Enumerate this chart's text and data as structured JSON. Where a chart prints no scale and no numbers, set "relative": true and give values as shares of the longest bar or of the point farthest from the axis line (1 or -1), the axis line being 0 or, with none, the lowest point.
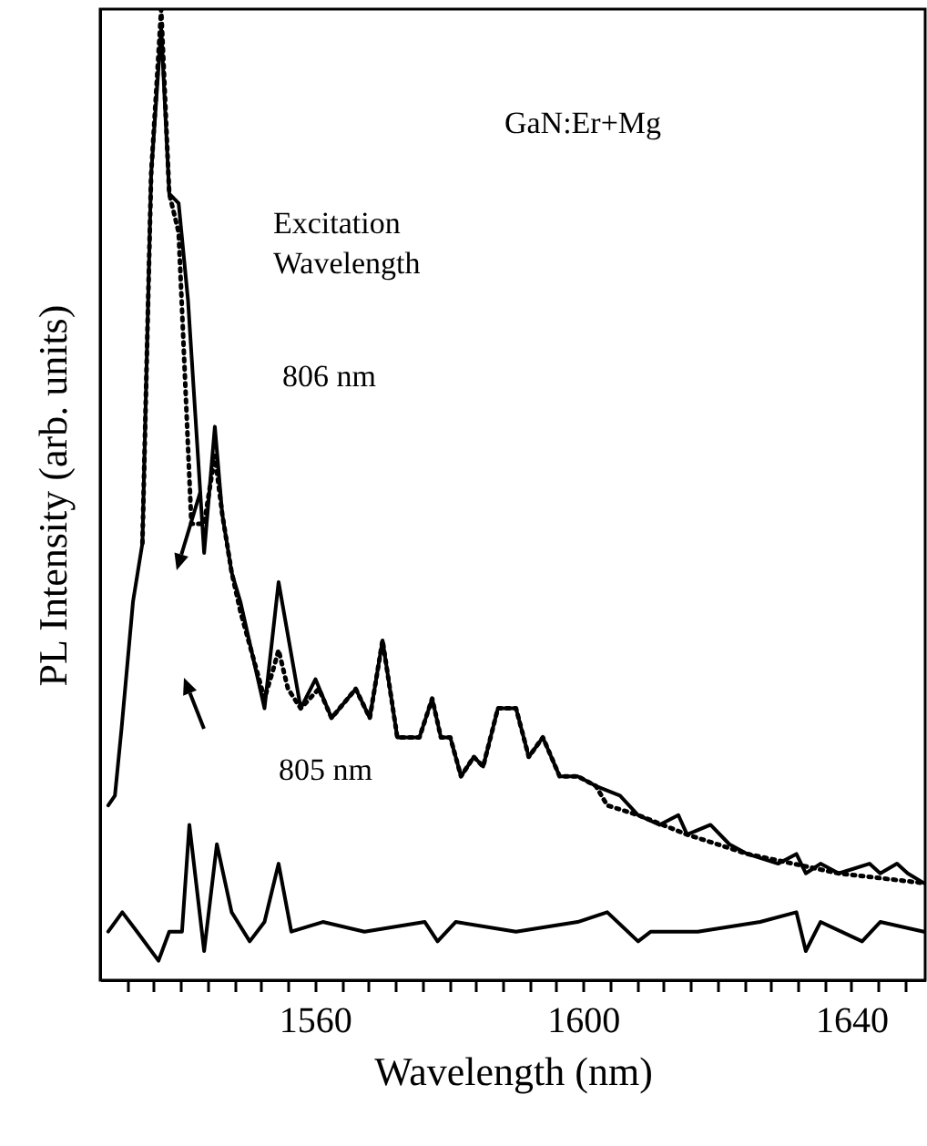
{
  "chart_data": {
    "type": "line",
    "relative": true,
    "xlabel": "Wavelength (nm)",
    "ylabel": "PL Intensity (arb. units)",
    "xlim": [
      1528,
      1651
    ],
    "xticks": [
      {
        "value": 1532,
        "label": null
      },
      {
        "value": 1536,
        "label": null
      },
      {
        "value": 1540,
        "label": null
      },
      {
        "value": 1544,
        "label": null
      },
      {
        "value": 1548,
        "label": null
      },
      {
        "value": 1552,
        "label": null
      },
      {
        "value": 1556,
        "label": null
      },
      1560,
      {
        "value": 1564,
        "label": null
      },
      {
        "value": 1568,
        "label": null
      },
      {
        "value": 1572,
        "label": null
      },
      {
        "value": 1576,
        "label": null
      },
      {
        "value": 1580,
        "label": null
      },
      {
        "value": 1584,
        "label": null
      },
      {
        "value": 1588,
        "label": null
      },
      {
        "value": 1592,
        "label": null
      },
      {
        "value": 1596,
        "label": null
      },
      1600,
      {
        "value": 1604,
        "label": null
      },
      {
        "value": 1608,
        "label": null
      },
      {
        "value": 1612,
        "label": null
      },
      {
        "value": 1616,
        "label": null
      },
      {
        "value": 1620,
        "label": null
      },
      {
        "value": 1624,
        "label": null
      },
      {
        "value": 1628,
        "label": null
      },
      {
        "value": 1632,
        "label": null
      },
      {
        "value": 1636,
        "label": null
      },
      1640,
      {
        "value": 1644,
        "label": null
      },
      {
        "value": 1648,
        "label": null
      }
    ],
    "annotations": [
      "GaN:Er+Mg",
      "Excitation Wavelength"
    ],
    "grid": false,
    "marker": "none",
    "series": [
      {
        "name": "806 nm",
        "color": "#000000",
        "line_style": "solid",
        "x": [
          1529.2,
          1530.2,
          1531.2,
          1532.9,
          1534.3,
          1535.6,
          1537.1,
          1538.3,
          1539.7,
          1541.1,
          1543.5,
          1545.1,
          1546.2,
          1547.6,
          1548.9,
          1552.5,
          1554.6,
          1557.9,
          1560.1,
          1562.5,
          1566.1,
          1568.2,
          1570.1,
          1572.3,
          1575.6,
          1577.5,
          1578.8,
          1580.2,
          1581.8,
          1583.7,
          1585.1,
          1587.3,
          1590.0,
          1591.9,
          1594.0,
          1596.5,
          1599.2,
          1601.9,
          1605.5,
          1608.2,
          1611.4,
          1614.2,
          1615.5,
          1619.0,
          1621.8,
          1624.5,
          1629.1,
          1631.8,
          1633.2,
          1635.4,
          1638.1,
          1642.7,
          1644.3,
          1646.8,
          1648.4,
          1650.8
        ],
        "values": [
          0.18,
          0.19,
          0.26,
          0.39,
          0.45,
          0.83,
          0.98,
          0.81,
          0.8,
          0.7,
          0.44,
          0.57,
          0.48,
          0.42,
          0.39,
          0.28,
          0.41,
          0.28,
          0.31,
          0.27,
          0.3,
          0.27,
          0.35,
          0.25,
          0.25,
          0.29,
          0.25,
          0.25,
          0.21,
          0.23,
          0.22,
          0.28,
          0.28,
          0.23,
          0.25,
          0.21,
          0.21,
          0.2,
          0.19,
          0.17,
          0.16,
          0.17,
          0.15,
          0.16,
          0.14,
          0.13,
          0.12,
          0.13,
          0.11,
          0.12,
          0.11,
          0.12,
          0.11,
          0.12,
          0.11,
          0.1
        ]
      },
      {
        "name": "805 nm",
        "color": "#000000",
        "line_style": "dotted",
        "x": [
          1534.3,
          1535.6,
          1537.1,
          1538.3,
          1539.7,
          1541.6,
          1543.5,
          1545.1,
          1546.2,
          1547.6,
          1548.9,
          1552.5,
          1553.8,
          1554.6,
          1556.0,
          1557.9,
          1560.6,
          1562.5,
          1566.1,
          1568.2,
          1570.1,
          1572.3,
          1575.6,
          1577.5,
          1578.8,
          1580.2,
          1581.8,
          1583.7,
          1585.1,
          1587.3,
          1590.0,
          1591.9,
          1594.0,
          1596.5,
          1599.2,
          1601.9,
          1603.6,
          1608.2,
          1615.5,
          1624.5,
          1638.1,
          1650.8
        ],
        "values": [
          0.45,
          0.83,
          1.0,
          0.81,
          0.77,
          0.47,
          0.47,
          0.54,
          0.48,
          0.42,
          0.38,
          0.29,
          0.32,
          0.34,
          0.3,
          0.28,
          0.3,
          0.27,
          0.3,
          0.27,
          0.35,
          0.25,
          0.25,
          0.29,
          0.25,
          0.25,
          0.21,
          0.23,
          0.22,
          0.28,
          0.28,
          0.23,
          0.25,
          0.21,
          0.21,
          0.2,
          0.18,
          0.17,
          0.15,
          0.13,
          0.11,
          0.1
        ]
      },
      {
        "color": "#000000",
        "line_style": "solid",
        "x": [
          1529.2,
          1531.3,
          1533.5,
          1536.7,
          1538.3,
          1540.2,
          1541.3,
          1543.5,
          1545.4,
          1547.6,
          1550.3,
          1552.5,
          1554.6,
          1556.5,
          1561.2,
          1567.4,
          1576.4,
          1578.3,
          1581.0,
          1590.0,
          1599.2,
          1603.6,
          1608.2,
          1610.1,
          1617.1,
          1626.4,
          1631.8,
          1633.2,
          1635.4,
          1641.6,
          1644.3,
          1650.8
        ],
        "values": [
          0.05,
          0.07,
          0.05,
          0.02,
          0.05,
          0.05,
          0.16,
          0.03,
          0.14,
          0.07,
          0.04,
          0.06,
          0.12,
          0.05,
          0.06,
          0.05,
          0.06,
          0.04,
          0.06,
          0.05,
          0.06,
          0.07,
          0.04,
          0.05,
          0.05,
          0.06,
          0.07,
          0.03,
          0.06,
          0.04,
          0.06,
          0.05
        ]
      }
    ]
  }
}
